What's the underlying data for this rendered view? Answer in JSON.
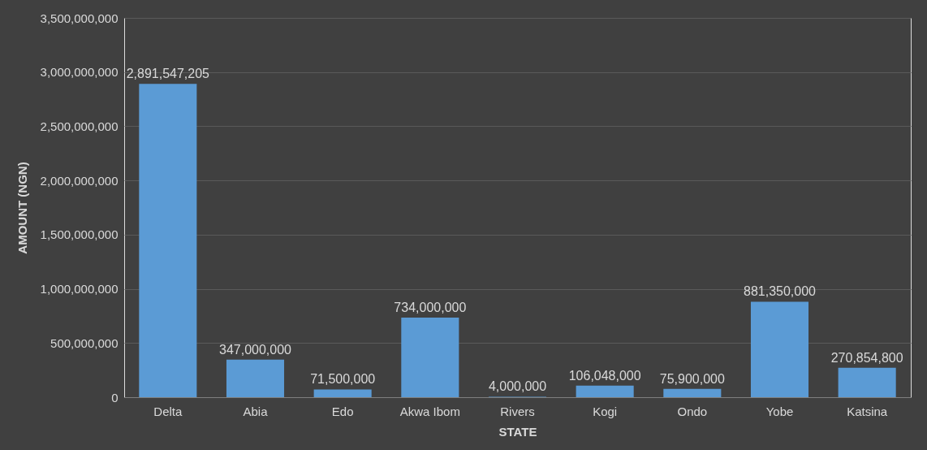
{
  "chart_data": {
    "type": "bar",
    "xlabel": "STATE",
    "ylabel": "AMOUNT (NGN)",
    "categories": [
      "Delta",
      "Abia",
      "Edo",
      "Akwa Ibom",
      "Rivers",
      "Kogi",
      "Ondo",
      "Yobe",
      "Katsina"
    ],
    "values": [
      2891547205,
      347000000,
      71500000,
      734000000,
      4000000,
      106048000,
      75900000,
      881350000,
      270854800
    ],
    "value_labels": [
      "2,891,547,205",
      "347,000,000",
      "71,500,000",
      "734,000,000",
      "4,000,000",
      "106,048,000",
      "75,900,000",
      "881,350,000",
      "270,854,800"
    ],
    "color": "#5b9bd5",
    "ylim": [
      0,
      3500000000
    ],
    "yticks": [
      {
        "value": 0,
        "label": "0"
      },
      {
        "value": 500000000,
        "label": "500,000,000"
      },
      {
        "value": 1000000000,
        "label": "1,000,000,000"
      },
      {
        "value": 1500000000,
        "label": "1,500,000,000"
      },
      {
        "value": 2000000000,
        "label": "2,000,000,000"
      },
      {
        "value": 2500000000,
        "label": "2,500,000,000"
      },
      {
        "value": 3000000000,
        "label": "3,000,000,000"
      },
      {
        "value": 3500000000,
        "label": "3,500,000,000"
      }
    ],
    "grid": "y"
  }
}
